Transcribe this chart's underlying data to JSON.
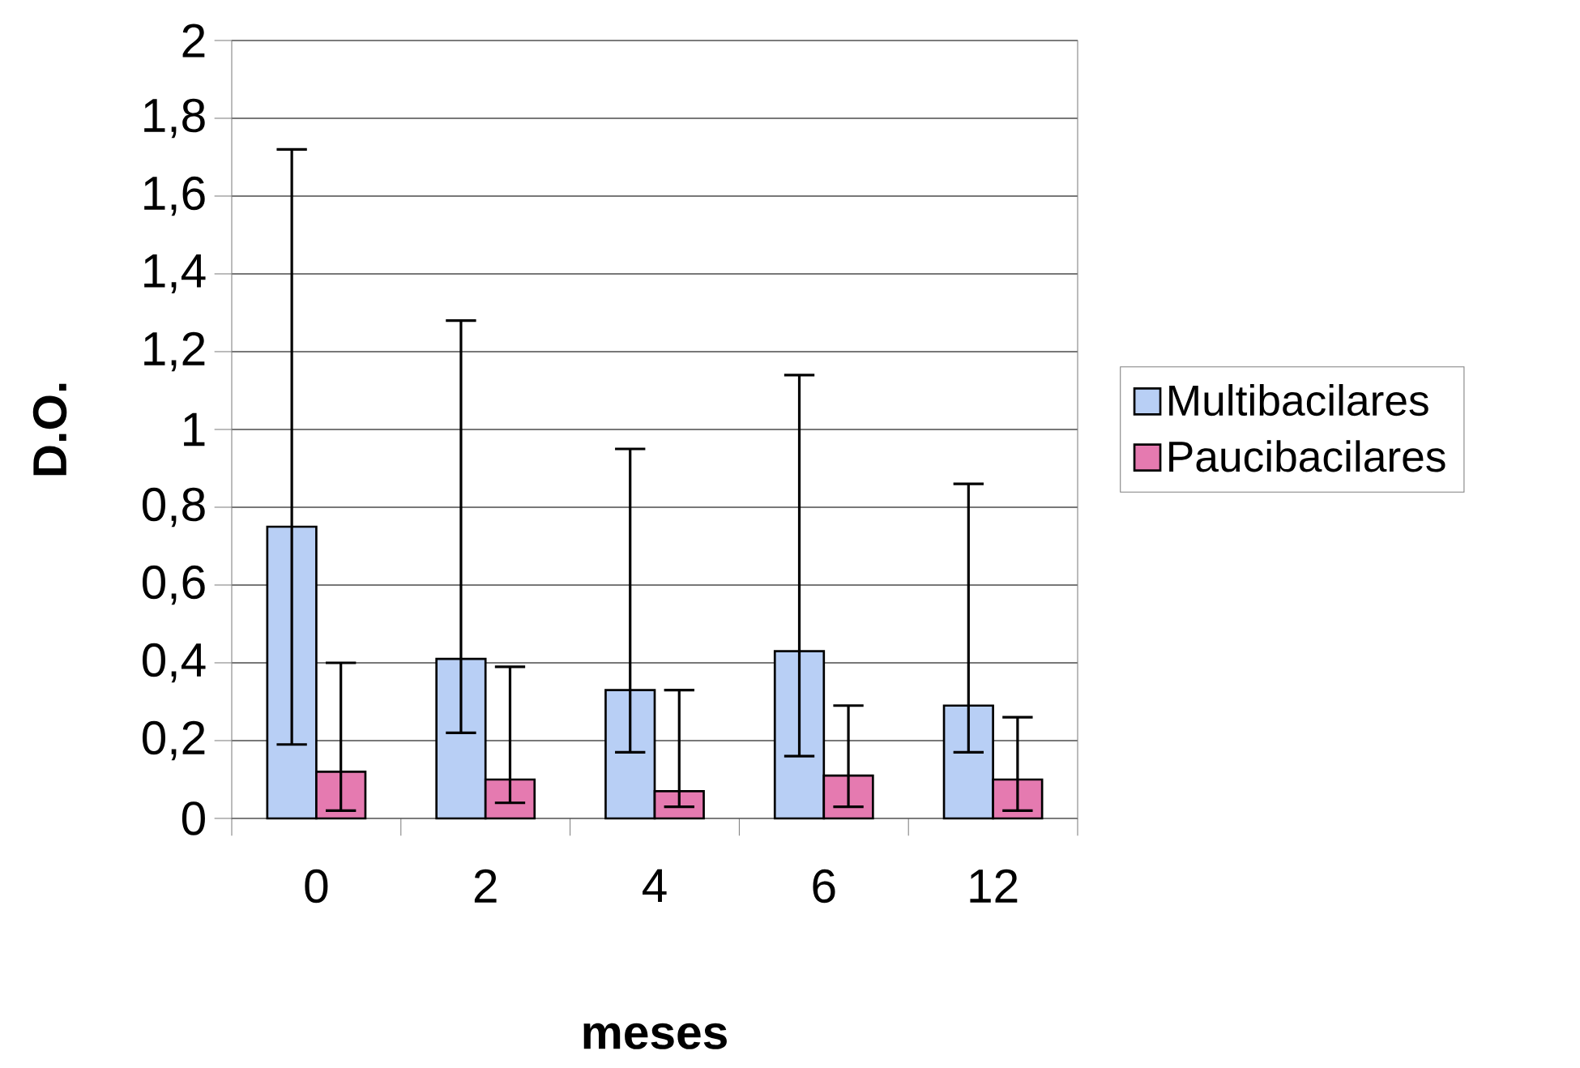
{
  "chart_data": {
    "type": "bar",
    "xlabel": "meses",
    "ylabel": "D.O.",
    "categories": [
      "0",
      "2",
      "4",
      "6",
      "12"
    ],
    "series": [
      {
        "name": "Multibacilares",
        "color": "#b8cff5",
        "values": [
          0.75,
          0.41,
          0.33,
          0.43,
          0.29
        ],
        "errors": [
          [
            0.19,
            1.72
          ],
          [
            0.22,
            1.28
          ],
          [
            0.17,
            0.95
          ],
          [
            0.16,
            1.14
          ],
          [
            0.17,
            0.86
          ]
        ]
      },
      {
        "name": "Paucibacilares",
        "color": "#e57ab0",
        "values": [
          0.12,
          0.1,
          0.07,
          0.11,
          0.1
        ],
        "errors": [
          [
            0.02,
            0.4
          ],
          [
            0.04,
            0.39
          ],
          [
            0.03,
            0.33
          ],
          [
            0.03,
            0.29
          ],
          [
            0.02,
            0.26
          ]
        ]
      }
    ],
    "ylim": [
      0,
      2
    ],
    "yticks": [
      0,
      {
        "value": 0.2,
        "label": "0,2"
      },
      {
        "value": 0.4,
        "label": "0,4"
      },
      {
        "value": 0.6,
        "label": "0,6"
      },
      {
        "value": 0.8,
        "label": "0,8"
      },
      1,
      {
        "value": 1.2,
        "label": "1,2"
      },
      {
        "value": 1.4,
        "label": "1,4"
      },
      {
        "value": 1.6,
        "label": "1,6"
      },
      {
        "value": 1.8,
        "label": "1,8"
      },
      2
    ],
    "grid": "y",
    "legend": "right"
  }
}
